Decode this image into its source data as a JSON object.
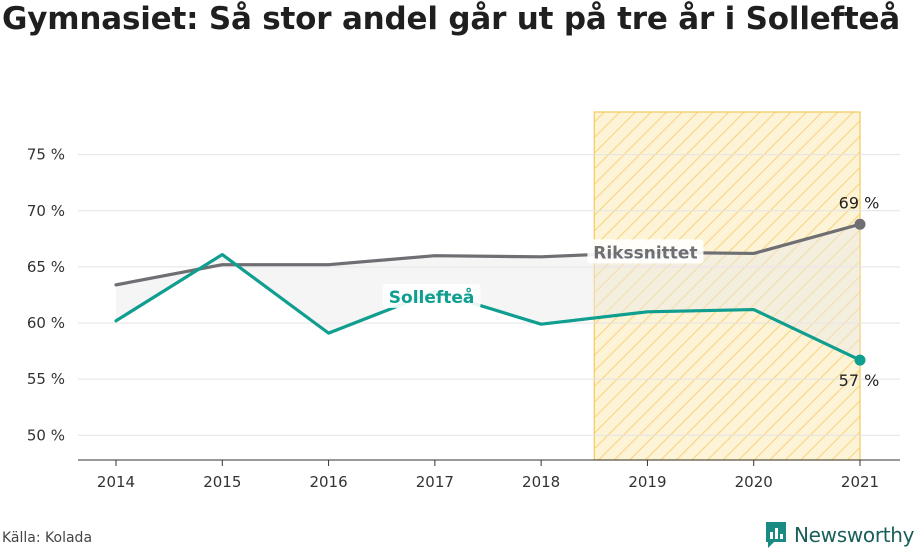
{
  "title": "Gymnasiet: Så stor andel går ut på tre år i Sollefteå",
  "source": "Källa: Kolada",
  "brand": "Newsworthy",
  "colors": {
    "accent_series": "#0f9e8f",
    "average_series": "#6e6e73",
    "highlight_fill": "#fbeab5",
    "highlight_stroke": "#f4c95a",
    "brand": "#1a5e5a"
  },
  "chart_data": {
    "type": "line",
    "title": "Gymnasiet: Så stor andel går ut på tre år i Sollefteå",
    "x": [
      2014,
      2015,
      2016,
      2017,
      2018,
      2019,
      2020,
      2021
    ],
    "xlabel": "",
    "ylabel": "",
    "ylim": [
      47.8,
      78.8
    ],
    "yticks": [
      50,
      55,
      60,
      65,
      70,
      75
    ],
    "ytick_labels": [
      "50 %",
      "55 %",
      "60 %",
      "65 %",
      "70 %",
      "75 %"
    ],
    "xtick_labels": [
      "2014",
      "2015",
      "2016",
      "2017",
      "2018",
      "2019",
      "2020",
      "2021"
    ],
    "grid": true,
    "highlight_x_range": [
      2018.5,
      2021
    ],
    "series": [
      {
        "name": "Rikssnittet",
        "values": [
          63.4,
          65.2,
          65.2,
          66.0,
          65.9,
          66.3,
          66.2,
          68.8
        ],
        "end_label": "69 %",
        "label_at_x": 2019.0
      },
      {
        "name": "Sollefteå",
        "values": [
          60.2,
          66.1,
          59.1,
          62.8,
          59.9,
          61.0,
          61.2,
          56.7
        ],
        "end_label": "57 %",
        "label_at_x": 2016.8
      }
    ]
  }
}
